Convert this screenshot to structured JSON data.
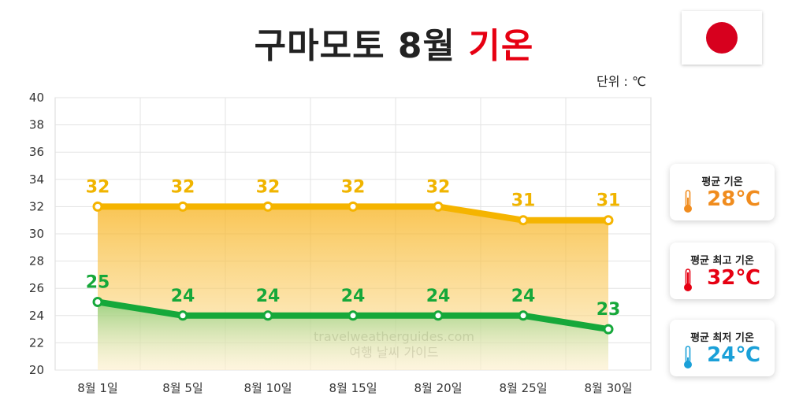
{
  "header": {
    "title_main": "구마모토 8월",
    "title_accent": "기온",
    "unit": "단위 : ℃"
  },
  "flag": {
    "icon": "japan-flag-icon"
  },
  "summary": [
    {
      "label": "평균 기온",
      "value": "28℃",
      "color": "#f08c1e",
      "icon": "thermometer-icon"
    },
    {
      "label": "평균 최고 기온",
      "value": "32℃",
      "color": "#e60012",
      "icon": "thermometer-icon"
    },
    {
      "label": "평균 최저 기온",
      "value": "24℃",
      "color": "#1aa0d8",
      "icon": "thermometer-icon"
    }
  ],
  "watermark": {
    "line1": "travelweatherguides.com",
    "line2": "여행 날씨 가이드"
  },
  "chart_data": {
    "type": "line",
    "categories": [
      "8월 1일",
      "8월 5일",
      "8월 10일",
      "8월 15일",
      "8월 20일",
      "8월 25일",
      "8월 30일"
    ],
    "series": [
      {
        "values": [
          32,
          32,
          32,
          32,
          32,
          31,
          31
        ],
        "color": "#f5b400",
        "label_color": "#f0b400"
      },
      {
        "values": [
          25,
          24,
          24,
          24,
          24,
          24,
          23
        ],
        "color": "#16a83a",
        "label_color": "#16a83a"
      }
    ],
    "ylim": [
      20,
      40
    ],
    "yticks": [
      20,
      22,
      24,
      26,
      28,
      30,
      32,
      34,
      36,
      38,
      40
    ],
    "grid": true
  }
}
